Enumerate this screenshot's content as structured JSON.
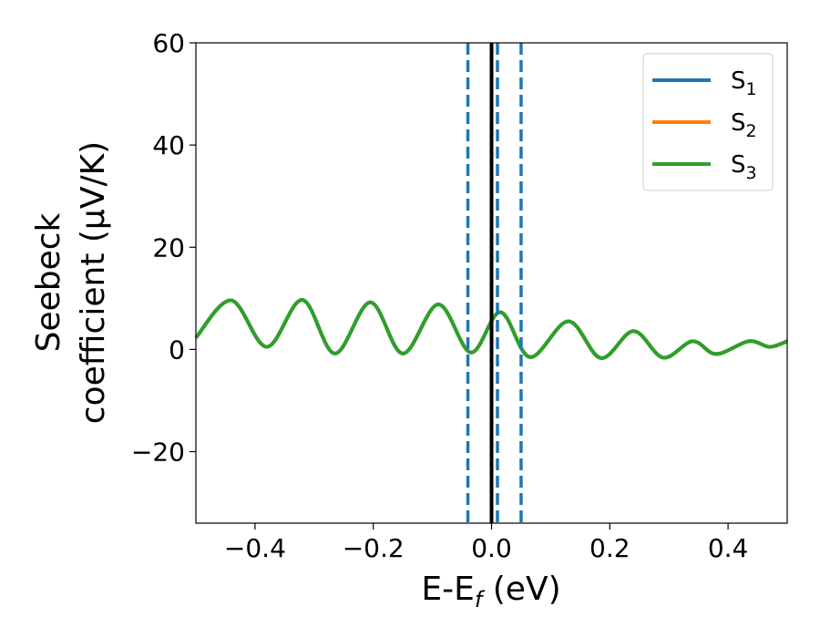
{
  "chart_data": {
    "type": "line",
    "xlabel": "E-E",
    "xlabel_sub": "f",
    "xlabel_unit": " (eV)",
    "ylabel_line1": "Seebeck",
    "ylabel_line2": "coefficient  (μV/K)",
    "xlim": [
      -0.5,
      0.5
    ],
    "ylim": [
      -34,
      60
    ],
    "x_ticks": [
      -0.4,
      -0.2,
      0.0,
      0.2,
      0.4
    ],
    "x_tick_labels": [
      "−0.4",
      "−0.2",
      "0.0",
      "0.2",
      "0.4"
    ],
    "y_ticks": [
      -20,
      0,
      20,
      40,
      60
    ],
    "y_tick_labels": [
      "−20",
      "0",
      "20",
      "40",
      "60"
    ],
    "grid": false,
    "legend_position": "top-right",
    "series": [
      {
        "name": "S",
        "sub": "1",
        "color": "#1f77b4",
        "x": [
          -0.5,
          -0.44,
          -0.38,
          -0.32,
          -0.265,
          -0.205,
          -0.15,
          -0.09,
          -0.035,
          0.015,
          0.065,
          0.13,
          0.185,
          0.24,
          0.29,
          0.34,
          0.38,
          0.435,
          0.47,
          0.5
        ],
        "y": [
          2.3,
          9.6,
          0.5,
          9.7,
          -0.8,
          9.2,
          -0.8,
          8.8,
          -0.6,
          7.3,
          -1.5,
          5.5,
          -1.7,
          3.6,
          -1.6,
          1.6,
          -0.9,
          1.6,
          0.5,
          1.6
        ]
      },
      {
        "name": "S",
        "sub": "2",
        "color": "#ff7f0e",
        "x": [
          -0.5,
          -0.44,
          -0.38,
          -0.32,
          -0.265,
          -0.205,
          -0.15,
          -0.09,
          -0.035,
          0.015,
          0.065,
          0.13,
          0.185,
          0.24,
          0.29,
          0.34,
          0.38,
          0.435,
          0.47,
          0.5
        ],
        "y": [
          2.3,
          9.6,
          0.5,
          9.7,
          -0.8,
          9.2,
          -0.8,
          8.8,
          -0.6,
          7.3,
          -1.5,
          5.5,
          -1.7,
          3.6,
          -1.6,
          1.6,
          -0.9,
          1.6,
          0.5,
          1.6
        ]
      },
      {
        "name": "S",
        "sub": "3",
        "color": "#2ca02c",
        "x": [
          -0.5,
          -0.44,
          -0.38,
          -0.32,
          -0.265,
          -0.205,
          -0.15,
          -0.09,
          -0.035,
          0.015,
          0.065,
          0.13,
          0.185,
          0.24,
          0.29,
          0.34,
          0.38,
          0.435,
          0.47,
          0.5
        ],
        "y": [
          2.3,
          9.6,
          0.5,
          9.7,
          -0.8,
          9.2,
          -0.8,
          8.8,
          -0.6,
          7.3,
          -1.5,
          5.5,
          -1.7,
          3.6,
          -1.6,
          1.6,
          -0.9,
          1.6,
          0.5,
          1.6
        ]
      }
    ],
    "vertical_lines": [
      {
        "x": 0.0,
        "style": "solid",
        "color": "#000000"
      },
      {
        "x": -0.04,
        "style": "dashed",
        "color": "#1f77b4"
      },
      {
        "x": 0.01,
        "style": "dashed",
        "color": "#1f77b4"
      },
      {
        "x": 0.05,
        "style": "dashed",
        "color": "#1f77b4"
      }
    ]
  }
}
